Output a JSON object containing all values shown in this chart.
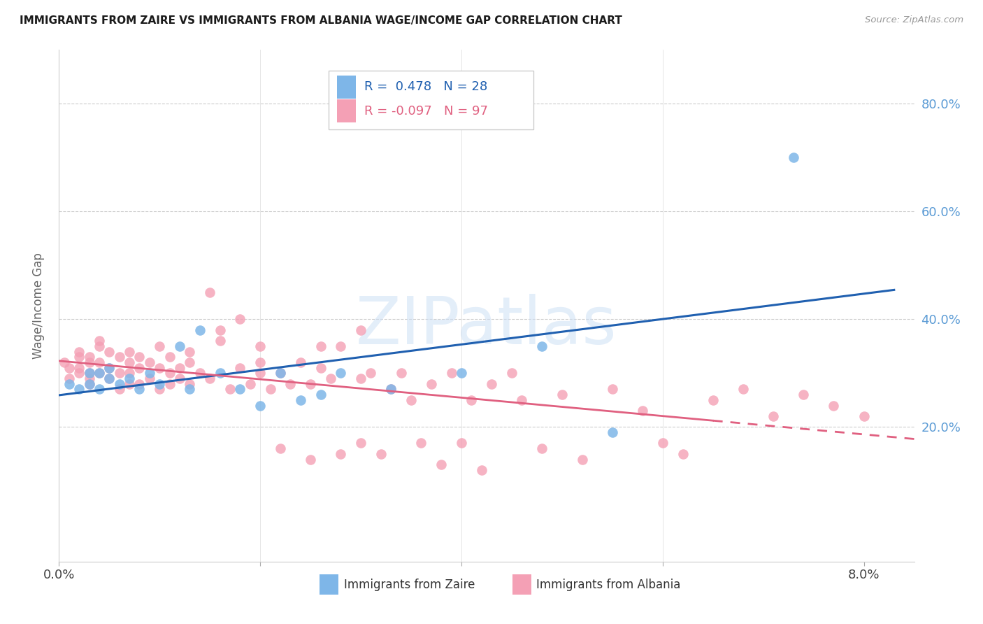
{
  "title": "IMMIGRANTS FROM ZAIRE VS IMMIGRANTS FROM ALBANIA WAGE/INCOME GAP CORRELATION CHART",
  "source": "Source: ZipAtlas.com",
  "ylabel": "Wage/Income Gap",
  "xlim": [
    0.0,
    0.085
  ],
  "ylim": [
    -0.05,
    0.9
  ],
  "watermark": "ZIPatlas",
  "legend_r_zaire": "0.478",
  "legend_n_zaire": "28",
  "legend_r_albania": "-0.097",
  "legend_n_albania": "97",
  "color_zaire": "#7EB6E8",
  "color_albania": "#F4A0B5",
  "line_color_zaire": "#2060B0",
  "line_color_albania": "#E06080",
  "background_color": "#ffffff",
  "zaire_x": [
    0.001,
    0.002,
    0.003,
    0.003,
    0.004,
    0.004,
    0.005,
    0.005,
    0.006,
    0.007,
    0.008,
    0.009,
    0.01,
    0.012,
    0.013,
    0.014,
    0.016,
    0.018,
    0.02,
    0.022,
    0.024,
    0.026,
    0.028,
    0.033,
    0.04,
    0.048,
    0.055,
    0.073
  ],
  "zaire_y": [
    0.28,
    0.27,
    0.28,
    0.3,
    0.27,
    0.3,
    0.29,
    0.31,
    0.28,
    0.29,
    0.27,
    0.3,
    0.28,
    0.35,
    0.27,
    0.38,
    0.3,
    0.27,
    0.24,
    0.3,
    0.25,
    0.26,
    0.3,
    0.27,
    0.3,
    0.35,
    0.19,
    0.7
  ],
  "albania_x": [
    0.0005,
    0.001,
    0.001,
    0.002,
    0.002,
    0.002,
    0.002,
    0.003,
    0.003,
    0.003,
    0.003,
    0.003,
    0.004,
    0.004,
    0.004,
    0.004,
    0.005,
    0.005,
    0.005,
    0.006,
    0.006,
    0.006,
    0.007,
    0.007,
    0.007,
    0.007,
    0.008,
    0.008,
    0.008,
    0.009,
    0.009,
    0.01,
    0.01,
    0.01,
    0.011,
    0.011,
    0.011,
    0.012,
    0.012,
    0.013,
    0.013,
    0.013,
    0.014,
    0.015,
    0.015,
    0.016,
    0.016,
    0.017,
    0.018,
    0.018,
    0.019,
    0.02,
    0.02,
    0.02,
    0.021,
    0.022,
    0.022,
    0.023,
    0.024,
    0.025,
    0.025,
    0.026,
    0.026,
    0.027,
    0.028,
    0.028,
    0.03,
    0.03,
    0.03,
    0.031,
    0.032,
    0.033,
    0.034,
    0.035,
    0.036,
    0.037,
    0.038,
    0.039,
    0.04,
    0.041,
    0.042,
    0.043,
    0.045,
    0.046,
    0.048,
    0.05,
    0.052,
    0.055,
    0.058,
    0.06,
    0.062,
    0.065,
    0.068,
    0.071,
    0.074,
    0.077,
    0.08
  ],
  "albania_y": [
    0.32,
    0.29,
    0.31,
    0.3,
    0.33,
    0.31,
    0.34,
    0.3,
    0.32,
    0.29,
    0.33,
    0.28,
    0.35,
    0.3,
    0.32,
    0.36,
    0.29,
    0.34,
    0.31,
    0.3,
    0.33,
    0.27,
    0.32,
    0.28,
    0.3,
    0.34,
    0.31,
    0.28,
    0.33,
    0.29,
    0.32,
    0.27,
    0.31,
    0.35,
    0.3,
    0.28,
    0.33,
    0.31,
    0.29,
    0.34,
    0.28,
    0.32,
    0.3,
    0.45,
    0.29,
    0.38,
    0.36,
    0.27,
    0.31,
    0.4,
    0.28,
    0.35,
    0.3,
    0.32,
    0.27,
    0.16,
    0.3,
    0.28,
    0.32,
    0.14,
    0.28,
    0.35,
    0.31,
    0.29,
    0.35,
    0.15,
    0.38,
    0.17,
    0.29,
    0.3,
    0.15,
    0.27,
    0.3,
    0.25,
    0.17,
    0.28,
    0.13,
    0.3,
    0.17,
    0.25,
    0.12,
    0.28,
    0.3,
    0.25,
    0.16,
    0.26,
    0.14,
    0.27,
    0.23,
    0.17,
    0.15,
    0.25,
    0.27,
    0.22,
    0.26,
    0.24,
    0.22
  ]
}
